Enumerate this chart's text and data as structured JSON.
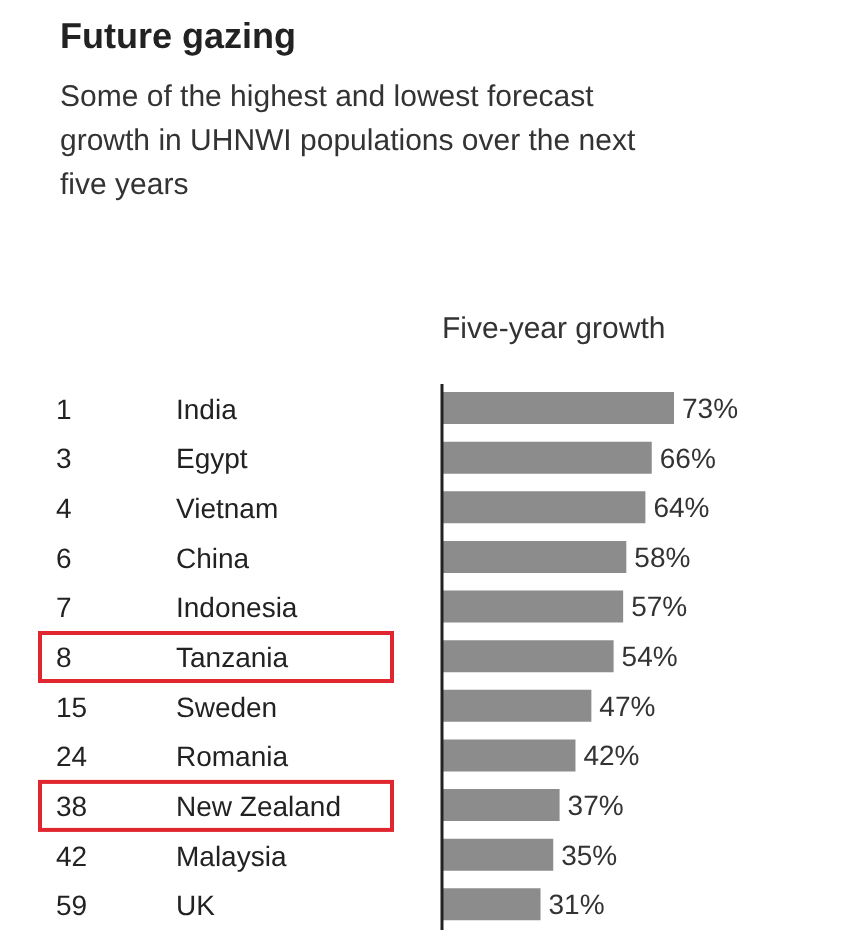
{
  "chart_data": {
    "type": "bar",
    "orientation": "horizontal",
    "title": "Future gazing",
    "subtitle": "Some of the highest and lowest forecast growth in UHNWI populations over the next five years",
    "xlabel": "Five-year growth",
    "categories": [
      "India",
      "Egypt",
      "Vietnam",
      "China",
      "Indonesia",
      "Tanzania",
      "Sweden",
      "Romania",
      "New Zealand",
      "Malaysia",
      "UK"
    ],
    "annotations": [
      "1",
      "3",
      "4",
      "6",
      "7",
      "8",
      "15",
      "24",
      "38",
      "42",
      "59"
    ],
    "values": [
      73,
      66,
      64,
      58,
      57,
      54,
      47,
      42,
      37,
      35,
      31
    ],
    "value_labels": [
      "73%",
      "66%",
      "64%",
      "58%",
      "57%",
      "54%",
      "47%",
      "42%",
      "37%",
      "35%",
      "31%"
    ],
    "color": "#8c8c8c"
  }
}
